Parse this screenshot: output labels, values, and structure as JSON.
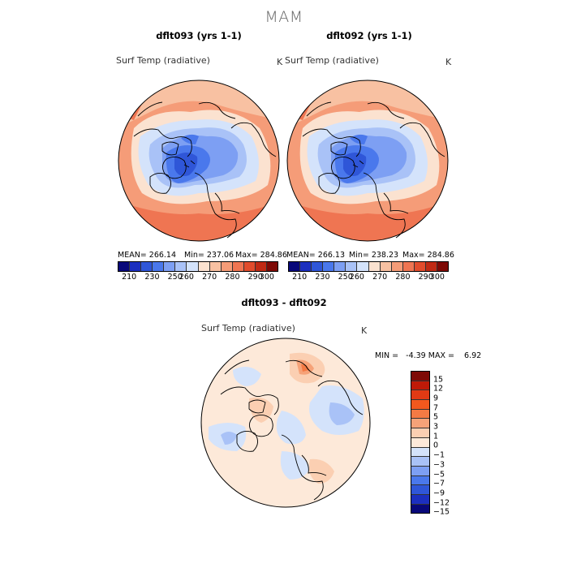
{
  "figure": {
    "season": "MAM"
  },
  "panels": [
    {
      "run_title": "dflt093 (yrs 1-1)",
      "variable": "Surf Temp (radiative)",
      "units": "K",
      "stats": {
        "mean": "MEAN= 266.14",
        "min": "Min= 237.06",
        "max": "Max= 284.86"
      }
    },
    {
      "run_title": "dflt092 (yrs 1-1)",
      "variable": "Surf Temp (radiative)",
      "units": "K",
      "stats": {
        "mean": "MEAN= 266.13",
        "min": "Min= 238.23",
        "max": "Max= 284.86"
      }
    }
  ],
  "diff_panel": {
    "title": "dflt093 - dflt092",
    "variable": "Surf Temp (radiative)",
    "units": "K",
    "minmax": "MIN =   -4.39 MAX =    6.92"
  },
  "colorbar_abs": {
    "colors": [
      "#08087a",
      "#1c2fbf",
      "#2f56d8",
      "#4a78ec",
      "#7d9ff3",
      "#a9c2f7",
      "#d4e3fb",
      "#fbe2d0",
      "#f8c1a2",
      "#f59c78",
      "#ef7552",
      "#e14c2c",
      "#c02a14",
      "#7e0a06"
    ],
    "labels": [
      "210",
      "230",
      "250",
      "260",
      "270",
      "280",
      "290",
      "300"
    ]
  },
  "colorbar_diff": {
    "colors": [
      "#7e0a06",
      "#bf1a08",
      "#e13a14",
      "#f2581e",
      "#f47a44",
      "#f6a278",
      "#fbcfb2",
      "#fde9d9",
      "#d4e3fb",
      "#a9c2f7",
      "#7d9ff3",
      "#4a78ec",
      "#2f56d8",
      "#1c2fbf",
      "#08087a"
    ],
    "labels": [
      "15",
      "12",
      "9",
      "7",
      "5",
      "3",
      "1",
      "0",
      "-1",
      "-3",
      "-5",
      "-7",
      "-9",
      "-12",
      "-15"
    ]
  }
}
